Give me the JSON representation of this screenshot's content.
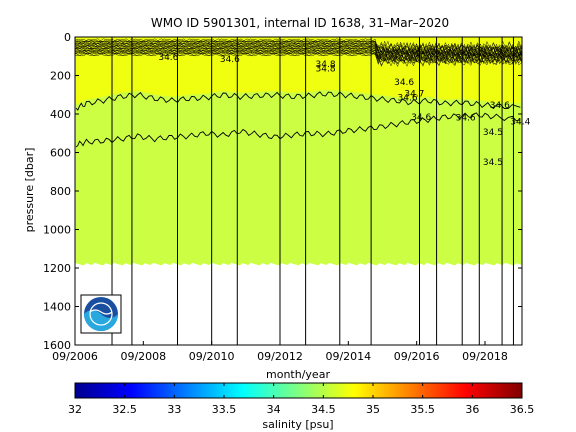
{
  "chart_data": {
    "type": "heatmap",
    "title": "WMO ID 5901301, internal ID 1638, 31–Mar–2020",
    "xlabel": "month/year",
    "ylabel": "pressure [dbar]",
    "x_tick_labels": [
      "09/2006",
      "09/2008",
      "09/2010",
      "09/2012",
      "09/2014",
      "09/2016",
      "09/2018"
    ],
    "xlim": [
      "2006-09",
      "2019-10"
    ],
    "y_ticks": [
      0,
      200,
      400,
      600,
      800,
      1000,
      1200,
      1400,
      1600
    ],
    "ylim": [
      1600,
      0
    ],
    "y_reversed": true,
    "grid": false,
    "colorbar": {
      "label": "salinity [psu]",
      "ticks": [
        32,
        32.5,
        33,
        33.5,
        34,
        34.5,
        35,
        35.5,
        36,
        36.5
      ],
      "range": [
        32,
        36.5
      ],
      "colormap": "jet"
    },
    "fill": {
      "deep_color": "#ccff44",
      "upper_color": "#f0ff10",
      "max_depth": 1180
    },
    "vertical_lines_dates": [
      "2006-09",
      "2007-10",
      "2008-05",
      "2009-09",
      "2010-09",
      "2011-06",
      "2012-09",
      "2013-06",
      "2014-06",
      "2015-05",
      "2016-10",
      "2017-04",
      "2018-01",
      "2018-07",
      "2019-03",
      "2019-07"
    ],
    "contours": [
      {
        "label": "34.6",
        "pressure_points": [
          [
            2006.7,
            370
          ],
          [
            2007.0,
            345
          ],
          [
            2007.5,
            330
          ],
          [
            2008.0,
            310
          ],
          [
            2008.5,
            300
          ],
          [
            2009.0,
            320
          ],
          [
            2009.5,
            330
          ],
          [
            2010.0,
            320
          ],
          [
            2010.5,
            315
          ],
          [
            2011.0,
            300
          ],
          [
            2011.5,
            310
          ],
          [
            2012.0,
            305
          ],
          [
            2012.5,
            300
          ],
          [
            2013.0,
            310
          ],
          [
            2013.5,
            305
          ],
          [
            2014.0,
            295
          ],
          [
            2014.5,
            300
          ],
          [
            2015.0,
            310
          ],
          [
            2015.5,
            320
          ],
          [
            2016.0,
            330
          ],
          [
            2016.5,
            340
          ],
          [
            2017.0,
            330
          ],
          [
            2017.5,
            345
          ],
          [
            2018.0,
            340
          ],
          [
            2018.5,
            350
          ],
          [
            2019.0,
            360
          ],
          [
            2019.7,
            365
          ]
        ]
      },
      {
        "label": "34.5",
        "pressure_points": [
          [
            2006.7,
            560
          ],
          [
            2007.0,
            545
          ],
          [
            2007.5,
            540
          ],
          [
            2008.0,
            530
          ],
          [
            2008.5,
            515
          ],
          [
            2009.0,
            530
          ],
          [
            2009.5,
            520
          ],
          [
            2010.0,
            515
          ],
          [
            2010.5,
            500
          ],
          [
            2011.0,
            510
          ],
          [
            2011.5,
            490
          ],
          [
            2012.0,
            505
          ],
          [
            2012.5,
            520
          ],
          [
            2013.0,
            510
          ],
          [
            2013.5,
            500
          ],
          [
            2014.0,
            505
          ],
          [
            2014.5,
            490
          ],
          [
            2015.0,
            480
          ],
          [
            2015.5,
            470
          ],
          [
            2016.0,
            455
          ],
          [
            2016.5,
            440
          ],
          [
            2017.0,
            430
          ],
          [
            2017.5,
            415
          ],
          [
            2018.0,
            410
          ],
          [
            2018.5,
            405
          ],
          [
            2019.0,
            415
          ],
          [
            2019.7,
            430
          ]
        ]
      }
    ],
    "contour_text_labels": [
      {
        "text": "34.6",
        "x": 2009.4,
        "y": 120
      },
      {
        "text": "34.6",
        "x": 2011.2,
        "y": 130
      },
      {
        "text": "34.8",
        "x": 2014.0,
        "y": 155
      },
      {
        "text": "34.8",
        "x": 2014.0,
        "y": 180
      },
      {
        "text": "34.6",
        "x": 2016.3,
        "y": 250
      },
      {
        "text": "34.7",
        "x": 2016.6,
        "y": 310
      },
      {
        "text": "34.6",
        "x": 2016.4,
        "y": 330
      },
      {
        "text": "34.6",
        "x": 2016.8,
        "y": 430
      },
      {
        "text": "34.6",
        "x": 2018.1,
        "y": 435
      },
      {
        "text": "34.6",
        "x": 2019.1,
        "y": 370
      },
      {
        "text": "34.4",
        "x": 2019.7,
        "y": 455
      },
      {
        "text": "34.5",
        "x": 2018.9,
        "y": 510
      },
      {
        "text": "34.5",
        "x": 2018.9,
        "y": 665
      }
    ]
  }
}
